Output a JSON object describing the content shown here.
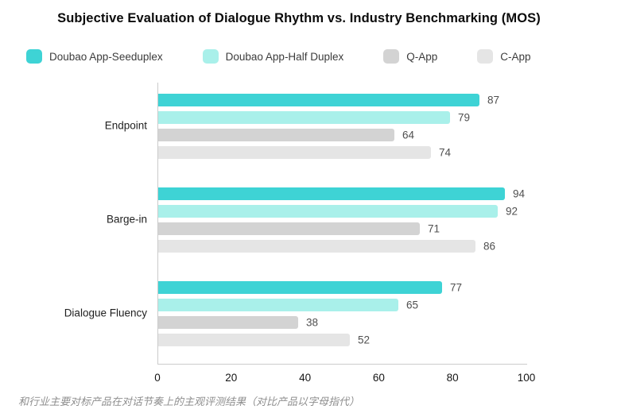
{
  "title": "Subjective Evaluation of Dialogue Rhythm vs. Industry Benchmarking (MOS)",
  "footer": "和行业主要对标产品在对话节奏上的主观评测结果（对比产品以字母指代）",
  "colors": {
    "series": [
      "#3ed3d5",
      "#a9f0ea",
      "#d3d3d3",
      "#e5e5e5"
    ],
    "axis": "#cbcbcb",
    "title_text": "#0b0b0b",
    "category_text": "#1f1f1f",
    "value_text": "#4f4f4f",
    "tick_text": "#151515",
    "footer_text": "#8f8f8f"
  },
  "chart_data": {
    "type": "bar",
    "orientation": "horizontal",
    "title": "Subjective Evaluation of Dialogue Rhythm vs. Industry Benchmarking (MOS)",
    "categories": [
      "Endpoint",
      "Barge-in",
      "Dialogue Fluency"
    ],
    "series": [
      {
        "name": "Doubao App-Seeduplex",
        "values": [
          87,
          94,
          77
        ]
      },
      {
        "name": "Doubao App-Half Duplex",
        "values": [
          79,
          92,
          65
        ]
      },
      {
        "name": "Q-App",
        "values": [
          64,
          71,
          38
        ]
      },
      {
        "name": "C-App",
        "values": [
          74,
          86,
          52
        ]
      }
    ],
    "xlim": [
      0,
      100
    ],
    "xticks": [
      0,
      20,
      40,
      60,
      80,
      100
    ],
    "xlabel": "",
    "ylabel": "",
    "value_labels": true,
    "legend_position": "top",
    "grid": false
  }
}
